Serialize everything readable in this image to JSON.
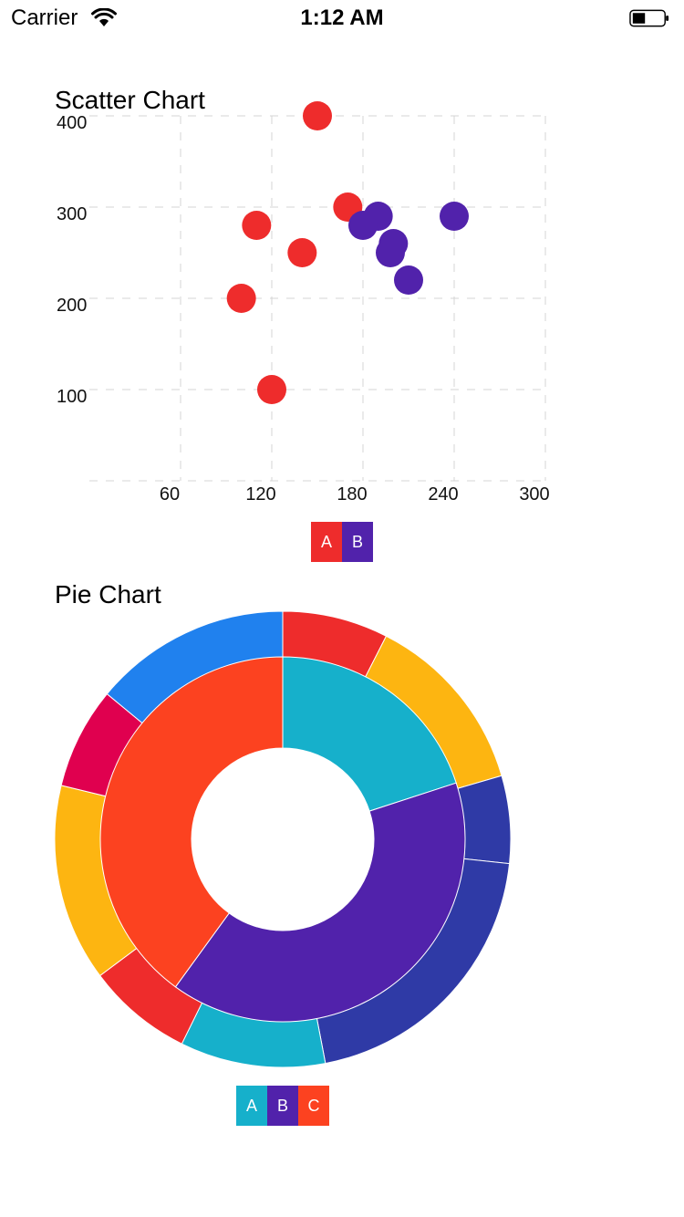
{
  "status_bar": {
    "carrier": "Carrier",
    "time": "1:12 AM"
  },
  "colors": {
    "red": "#EE2C2C",
    "purple": "#5122AB",
    "teal": "#16B0CB",
    "orange": "#FC4220",
    "blue": "#2081EE",
    "crimson": "#E0004F",
    "amber": "#FDB511",
    "indigo": "#2F3AA6"
  },
  "scatter": {
    "title": "Scatter Chart",
    "legend": [
      {
        "label": "A",
        "color": "#EE2C2C"
      },
      {
        "label": "B",
        "color": "#5122AB"
      }
    ]
  },
  "pie": {
    "title": "Pie Chart",
    "legend": [
      {
        "label": "A",
        "color": "#16B0CB"
      },
      {
        "label": "B",
        "color": "#5122AB"
      },
      {
        "label": "C",
        "color": "#FC4220"
      }
    ]
  },
  "chart_data": [
    {
      "type": "scatter",
      "title": "Scatter Chart",
      "xlim": [
        0,
        300
      ],
      "ylim": [
        0,
        400
      ],
      "xticks": [
        60,
        120,
        180,
        240,
        300
      ],
      "yticks": [
        100,
        200,
        300,
        400
      ],
      "grid": true,
      "legend_position": "bottom",
      "series": [
        {
          "name": "A",
          "color": "#EE2C2C",
          "points": [
            [
              150,
              400
            ],
            [
              170,
              300
            ],
            [
              110,
              280
            ],
            [
              140,
              250
            ],
            [
              100,
              200
            ],
            [
              120,
              100
            ]
          ]
        },
        {
          "name": "B",
          "color": "#5122AB",
          "points": [
            [
              190,
              290
            ],
            [
              180,
              280
            ],
            [
              240,
              290
            ],
            [
              200,
              260
            ],
            [
              198,
              250
            ],
            [
              210,
              220
            ]
          ]
        }
      ]
    },
    {
      "type": "pie",
      "title": "Pie Chart",
      "legend_position": "bottom",
      "inner": [
        {
          "name": "A",
          "value": 20,
          "color": "#16B0CB"
        },
        {
          "name": "B",
          "value": 40,
          "color": "#5122AB"
        },
        {
          "name": "C",
          "value": 40,
          "color": "#FC4220"
        }
      ],
      "outer": [
        {
          "value": 7.5,
          "color": "#EE2C2C"
        },
        {
          "value": 13,
          "color": "#FDB511"
        },
        {
          "value": 6.2,
          "color": "#2F3AA6"
        },
        {
          "value": 20.3,
          "color": "#2F3AA6"
        },
        {
          "value": 10.3,
          "color": "#16B0CB"
        },
        {
          "value": 7.5,
          "color": "#EE2C2C"
        },
        {
          "value": 14,
          "color": "#FDB511"
        },
        {
          "value": 7.2,
          "color": "#E0004F"
        },
        {
          "value": 14,
          "color": "#2081EE"
        }
      ]
    }
  ]
}
